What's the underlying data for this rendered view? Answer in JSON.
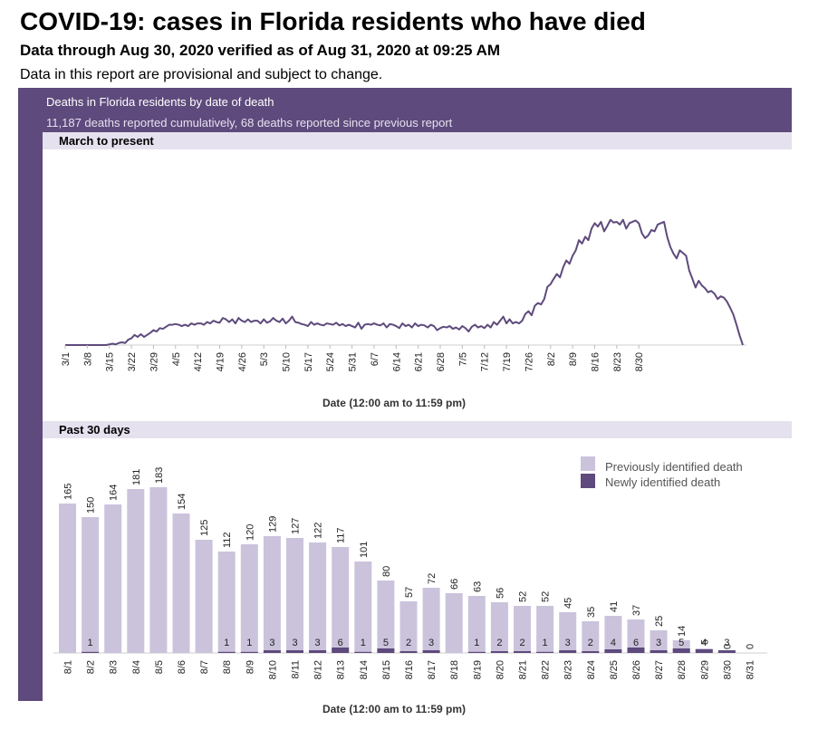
{
  "page": {
    "title": "COVID-19: cases in Florida residents who have died",
    "subtitle": "Data through Aug 30, 2020 verified as of Aug 31, 2020 at 09:25 AM",
    "disclaimer": "Data in this report are provisional and subject to change."
  },
  "panel": {
    "header_title": "Deaths in Florida residents by date of death",
    "header_subtitle": "11,187 deaths reported cumulatively, 68 deaths reported since previous report",
    "colors": {
      "panel": "#5e4a7c",
      "section": "#e6e1ee",
      "line": "#5e4a7c",
      "previous": "#cbc3dc",
      "new": "#5e4a7c"
    }
  },
  "chart_data": [
    {
      "type": "line",
      "section_title": "March to present",
      "xlabel": "Date (12:00 am to 11:59 pm)",
      "start_date": "3/1",
      "x_ticks": [
        "3/1",
        "3/8",
        "3/15",
        "3/22",
        "3/29",
        "4/5",
        "4/12",
        "4/19",
        "4/26",
        "5/3",
        "5/10",
        "5/17",
        "5/24",
        "5/31",
        "6/7",
        "6/14",
        "6/21",
        "6/28",
        "7/5",
        "7/12",
        "7/19",
        "7/26",
        "8/2",
        "8/9",
        "8/16",
        "8/23",
        "8/30"
      ],
      "ylim": [
        0,
        190
      ],
      "series": [
        {
          "values": [
            0,
            0,
            0,
            0,
            0,
            0,
            0,
            0,
            0,
            0,
            0,
            0,
            0,
            0,
            1,
            2,
            1,
            3,
            4,
            3,
            8,
            10,
            15,
            12,
            16,
            12,
            15,
            18,
            22,
            20,
            25,
            24,
            27,
            30,
            30,
            31,
            30,
            28,
            30,
            28,
            32,
            30,
            32,
            32,
            30,
            34,
            32,
            36,
            34,
            33,
            40,
            38,
            34,
            38,
            32,
            40,
            36,
            34,
            38,
            34,
            36,
            36,
            32,
            38,
            33,
            35,
            40,
            36,
            34,
            39,
            32,
            36,
            42,
            34,
            33,
            31,
            30,
            28,
            34,
            30,
            32,
            30,
            29,
            32,
            31,
            30,
            33,
            29,
            31,
            28,
            30,
            28,
            26,
            33,
            24,
            30,
            31,
            30,
            32,
            30,
            29,
            32,
            26,
            31,
            30,
            28,
            25,
            32,
            28,
            30,
            26,
            32,
            28,
            30,
            29,
            26,
            30,
            28,
            22,
            25,
            27,
            26,
            28,
            24,
            26,
            23,
            28,
            25,
            20,
            27,
            30,
            26,
            28,
            25,
            30,
            26,
            34,
            30,
            36,
            42,
            32,
            38,
            32,
            34,
            32,
            36,
            46,
            50,
            44,
            58,
            62,
            60,
            68,
            86,
            90,
            98,
            105,
            100,
            115,
            125,
            120,
            132,
            140,
            155,
            150,
            160,
            155,
            172,
            180,
            175,
            182,
            168,
            176,
            185,
            181,
            182,
            178,
            185,
            172,
            180,
            182,
            184,
            180,
            165,
            158,
            162,
            170,
            168,
            178,
            180,
            182,
            160,
            145,
            135,
            128,
            140,
            136,
            132,
            110,
            98,
            85,
            95,
            88,
            84,
            78,
            80,
            76,
            68,
            72,
            70,
            64,
            55,
            45,
            30,
            14,
            0
          ]
        }
      ]
    },
    {
      "type": "bar",
      "section_title": "Past 30 days",
      "xlabel": "Date (12:00 am to 11:59 pm)",
      "categories": [
        "8/1",
        "8/2",
        "8/3",
        "8/4",
        "8/5",
        "8/6",
        "8/7",
        "8/8",
        "8/9",
        "8/10",
        "8/11",
        "8/12",
        "8/13",
        "8/14",
        "8/15",
        "8/16",
        "8/17",
        "8/18",
        "8/19",
        "8/20",
        "8/21",
        "8/22",
        "8/23",
        "8/24",
        "8/25",
        "8/26",
        "8/27",
        "8/28",
        "8/29",
        "8/30",
        "8/31"
      ],
      "totals": [
        165,
        150,
        164,
        181,
        183,
        154,
        125,
        112,
        120,
        129,
        127,
        122,
        117,
        101,
        80,
        57,
        72,
        66,
        63,
        56,
        52,
        52,
        45,
        35,
        41,
        37,
        25,
        14,
        5,
        0,
        0
      ],
      "new_labels": [
        "",
        "1",
        "",
        "",
        "",
        "",
        "",
        "1",
        "1",
        "3",
        "3",
        "3",
        "6",
        "1",
        "5",
        "2",
        "3",
        "",
        "1",
        "2",
        "2",
        "1",
        "3",
        "2",
        "4",
        "6",
        "3",
        "5",
        "4",
        "3",
        ""
      ],
      "ylim": [
        0,
        200
      ],
      "series": [
        {
          "name": "Previously identified death",
          "color": "#cbc3dc"
        },
        {
          "name": "Newly identified death",
          "color": "#5e4a7c"
        }
      ],
      "legend_position": "top-right"
    }
  ]
}
